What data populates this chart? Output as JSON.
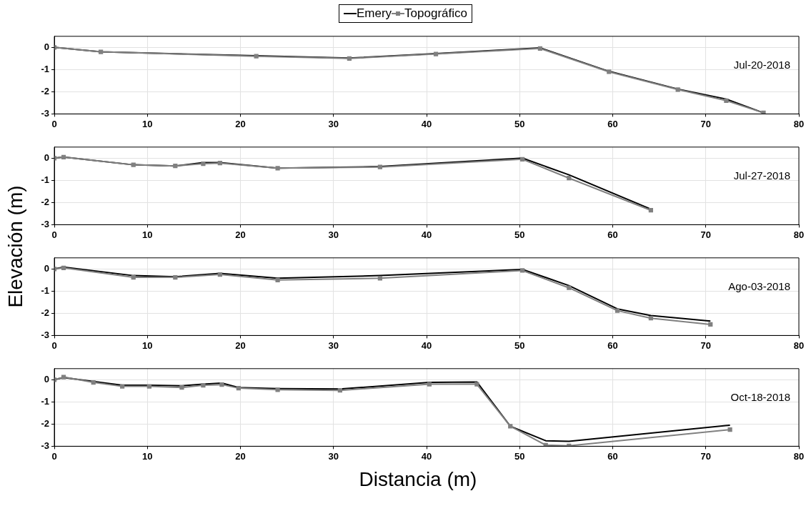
{
  "chart_data": [
    {
      "type": "line",
      "legend": "top",
      "xlim": [
        0,
        80
      ],
      "xticks": [
        0,
        10,
        20,
        30,
        40,
        50,
        60,
        70,
        80
      ],
      "ylim": [
        -3,
        0.5
      ],
      "yticks": [
        0,
        -1,
        -2,
        -3
      ],
      "grid": true,
      "annotations": [
        "Jul-20-2018"
      ],
      "series": [
        {
          "name": "Emery",
          "color": "#000000",
          "marker": "none",
          "x": [
            0,
            5,
            21.7,
            31.7,
            41,
            52.2,
            59.6,
            67,
            72.2,
            76.2
          ],
          "values": [
            0,
            -0.2,
            -0.38,
            -0.48,
            -0.28,
            -0.02,
            -1.08,
            -1.88,
            -2.33,
            -2.95
          ]
        },
        {
          "name": "Topográfico",
          "color": "#808080",
          "marker": "square",
          "x": [
            0,
            5,
            21.7,
            31.7,
            41,
            52.2,
            59.6,
            67,
            72.2,
            76.2
          ],
          "values": [
            0,
            -0.2,
            -0.4,
            -0.5,
            -0.3,
            -0.05,
            -1.1,
            -1.9,
            -2.4,
            -2.95
          ]
        }
      ]
    },
    {
      "type": "line",
      "xlim": [
        0,
        80
      ],
      "xticks": [
        0,
        10,
        20,
        30,
        40,
        50,
        60,
        70,
        80
      ],
      "ylim": [
        -3,
        0.5
      ],
      "yticks": [
        0,
        -1,
        -2,
        -3
      ],
      "grid": true,
      "ylabel": "Elevación (m)",
      "annotations": [
        "Jul-27-2018"
      ],
      "series": [
        {
          "color": "#000000",
          "marker": "none",
          "x": [
            0,
            1,
            8.5,
            13,
            16,
            17.8,
            24,
            35,
            50.3,
            55.3,
            64.1
          ],
          "values": [
            0,
            0.05,
            -0.3,
            -0.35,
            -0.2,
            -0.2,
            -0.45,
            -0.38,
            0,
            -0.75,
            -2.3
          ]
        },
        {
          "color": "#808080",
          "marker": "square",
          "x": [
            0,
            1,
            8.5,
            13,
            16,
            17.8,
            24,
            35,
            50.3,
            55.3,
            64.1
          ],
          "values": [
            0,
            0.05,
            -0.3,
            -0.35,
            -0.25,
            -0.22,
            -0.45,
            -0.4,
            -0.05,
            -0.9,
            -2.35
          ]
        }
      ]
    },
    {
      "type": "line",
      "xlim": [
        0,
        80
      ],
      "xticks": [
        0,
        10,
        20,
        30,
        40,
        50,
        60,
        70,
        80
      ],
      "ylim": [
        -3,
        0.5
      ],
      "yticks": [
        0,
        -1,
        -2,
        -3
      ],
      "grid": true,
      "annotations": [
        "Ago-03-2018"
      ],
      "series": [
        {
          "color": "#000000",
          "marker": "none",
          "x": [
            0,
            1,
            8.5,
            13,
            17.8,
            24,
            35,
            50.3,
            55.3,
            60.5,
            64.1,
            70.5
          ],
          "values": [
            0,
            0.08,
            -0.3,
            -0.35,
            -0.2,
            -0.42,
            -0.3,
            -0.02,
            -0.75,
            -1.8,
            -2.1,
            -2.35
          ]
        },
        {
          "color": "#808080",
          "marker": "square",
          "x": [
            0,
            1,
            8.5,
            13,
            17.8,
            24,
            35,
            50.3,
            55.3,
            60.5,
            64.1,
            70.5
          ],
          "values": [
            0,
            0.05,
            -0.38,
            -0.38,
            -0.25,
            -0.5,
            -0.42,
            -0.07,
            -0.85,
            -1.88,
            -2.22,
            -2.5
          ]
        }
      ]
    },
    {
      "type": "line",
      "xlim": [
        0,
        80
      ],
      "xticks": [
        0,
        10,
        20,
        30,
        40,
        50,
        60,
        70,
        80
      ],
      "ylim": [
        -3,
        0.5
      ],
      "yticks": [
        0,
        -1,
        -2,
        -3
      ],
      "grid": true,
      "xlabel": "Distancia (m)",
      "annotations": [
        "Oct-18-2018"
      ],
      "series": [
        {
          "color": "#000000",
          "marker": "none",
          "x": [
            0,
            1,
            4.2,
            7.3,
            10.2,
            13.7,
            16,
            18,
            19.8,
            24,
            30.7,
            40.3,
            45.4,
            49,
            52.8,
            55.3,
            72.6
          ],
          "values": [
            0,
            0.1,
            -0.08,
            -0.25,
            -0.25,
            -0.27,
            -0.2,
            -0.15,
            -0.35,
            -0.4,
            -0.42,
            -0.12,
            -0.1,
            -2.1,
            -2.75,
            -2.78,
            -2.05
          ]
        },
        {
          "color": "#808080",
          "marker": "square",
          "x": [
            0,
            1,
            4.2,
            7.3,
            10.2,
            13.7,
            16,
            18,
            19.8,
            24,
            30.7,
            40.3,
            45.4,
            49,
            52.8,
            55.3,
            72.6
          ],
          "values": [
            0,
            0.12,
            -0.12,
            -0.3,
            -0.3,
            -0.35,
            -0.25,
            -0.22,
            -0.38,
            -0.45,
            -0.48,
            -0.2,
            -0.2,
            -2.1,
            -2.95,
            -2.98,
            -2.25
          ]
        }
      ]
    }
  ]
}
